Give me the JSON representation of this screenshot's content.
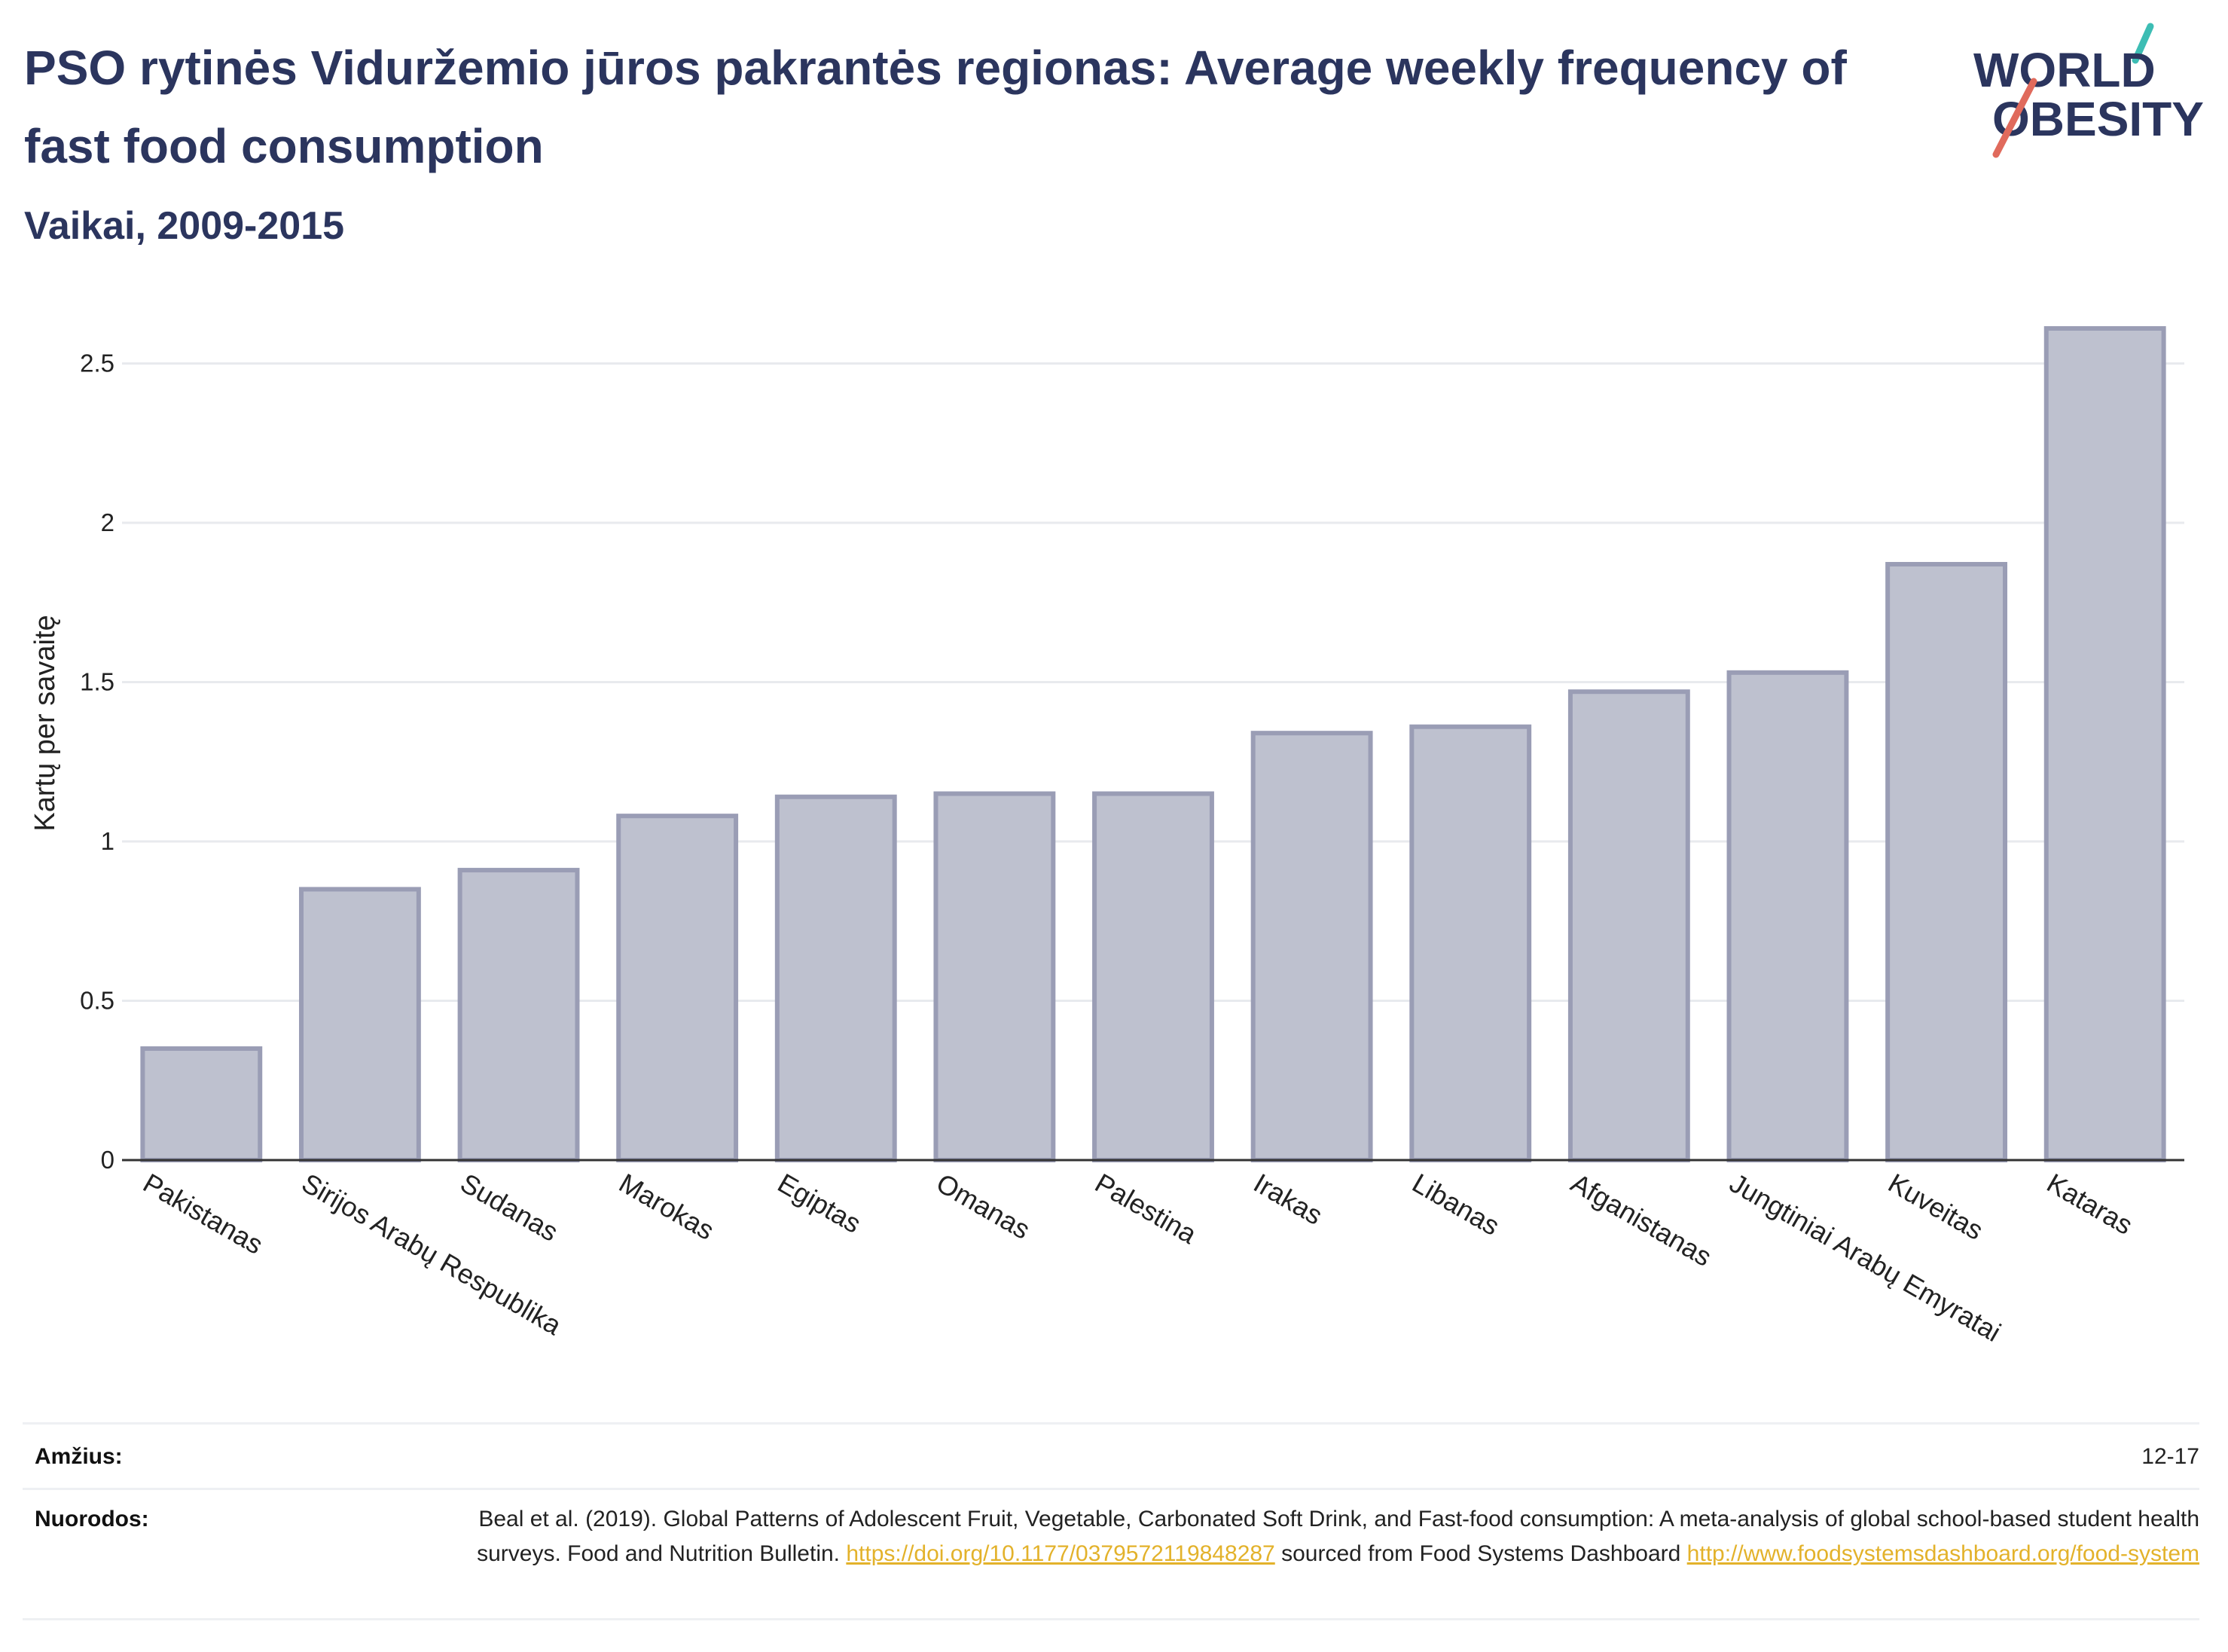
{
  "header": {
    "title": "PSO rytinės Viduržemio jūros pakrantės regionas: Average weekly frequency of fast food consumption",
    "subtitle": "Vaikai, 2009-2015",
    "logo_text_top": "WORLD",
    "logo_text_bottom": "OBESITY"
  },
  "chart_data": {
    "type": "bar",
    "title": "PSO rytinės Viduržemio jūros pakrantės regionas: Average weekly frequency of fast food consumption",
    "subtitle": "Vaikai, 2009-2015",
    "ylabel": "Kartų per savaitę",
    "xlabel": "",
    "categories": [
      "Pakistanas",
      "Sirijos Arabų Respublika",
      "Sudanas",
      "Marokas",
      "Egiptas",
      "Omanas",
      "Palestina",
      "Irakas",
      "Libanas",
      "Afganistanas",
      "Jungtiniai Arabų Emyratai",
      "Kuveitas",
      "Kataras"
    ],
    "values": [
      0.35,
      0.85,
      0.91,
      1.08,
      1.14,
      1.15,
      1.15,
      1.34,
      1.36,
      1.47,
      1.53,
      1.87,
      2.61
    ],
    "ylim": [
      0,
      2.75
    ],
    "yticks": [
      0,
      0.5,
      1,
      1.5,
      2,
      2.5
    ],
    "ytick_labels": [
      "0",
      "0.5",
      "1",
      "1.5",
      "2",
      "2.5"
    ],
    "grid": true,
    "colors": {
      "bar_fill": "#bec1cf",
      "bar_stroke": "#9a9db5",
      "axis": "#333333",
      "grid": "#e8eaee"
    }
  },
  "footer": {
    "age_label": "Amžius:",
    "age_value": "12-17",
    "refs_label": "Nuorodos:",
    "refs_text_1": "Beal et al. (2019). Global Patterns of Adolescent Fruit, Vegetable, Carbonated Soft Drink, and Fast-food consumption: A meta-analysis of global school-based student health surveys. Food and Nutrition Bulletin.",
    "refs_link_1": "https://doi.org/10.1177/0379572119848287",
    "refs_text_2": "sourced from Food Systems Dashboard",
    "refs_link_2": "http://www.foodsystemsdashboard.org/food-system"
  }
}
